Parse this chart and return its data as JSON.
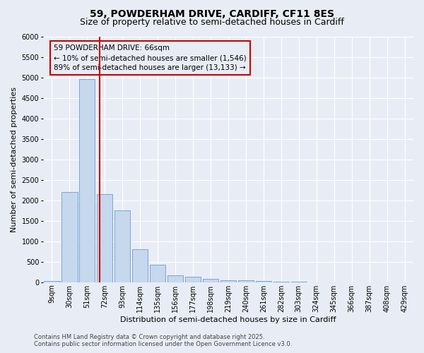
{
  "title_line1": "59, POWDERHAM DRIVE, CARDIFF, CF11 8ES",
  "title_line2": "Size of property relative to semi-detached houses in Cardiff",
  "xlabel": "Distribution of semi-detached houses by size in Cardiff",
  "ylabel": "Number of semi-detached properties",
  "footer_line1": "Contains HM Land Registry data © Crown copyright and database right 2025.",
  "footer_line2": "Contains public sector information licensed under the Open Government Licence v3.0.",
  "categories": [
    "9sqm",
    "30sqm",
    "51sqm",
    "72sqm",
    "93sqm",
    "114sqm",
    "135sqm",
    "156sqm",
    "177sqm",
    "198sqm",
    "219sqm",
    "240sqm",
    "261sqm",
    "282sqm",
    "303sqm",
    "324sqm",
    "345sqm",
    "366sqm",
    "387sqm",
    "408sqm",
    "429sqm"
  ],
  "values": [
    30,
    2200,
    4950,
    2150,
    1750,
    800,
    420,
    170,
    130,
    90,
    55,
    45,
    30,
    15,
    8,
    5,
    3,
    2,
    1,
    0,
    0
  ],
  "bar_color": "#c5d8ed",
  "bar_edge_color": "#5b8bc4",
  "ylim": [
    0,
    6000
  ],
  "yticks": [
    0,
    500,
    1000,
    1500,
    2000,
    2500,
    3000,
    3500,
    4000,
    4500,
    5000,
    5500,
    6000
  ],
  "property_label": "59 POWDERHAM DRIVE: 66sqm",
  "annotation_smaller": "← 10% of semi-detached houses are smaller (1,546)",
  "annotation_larger": "89% of semi-detached houses are larger (13,133) →",
  "vline_color": "#cc0000",
  "annotation_box_color": "#cc0000",
  "bg_color": "#e8edf5",
  "grid_color": "#ffffff",
  "title_fontsize": 10,
  "subtitle_fontsize": 9,
  "axis_label_fontsize": 8,
  "tick_fontsize": 7,
  "annotation_fontsize": 7.5,
  "footer_fontsize": 6
}
